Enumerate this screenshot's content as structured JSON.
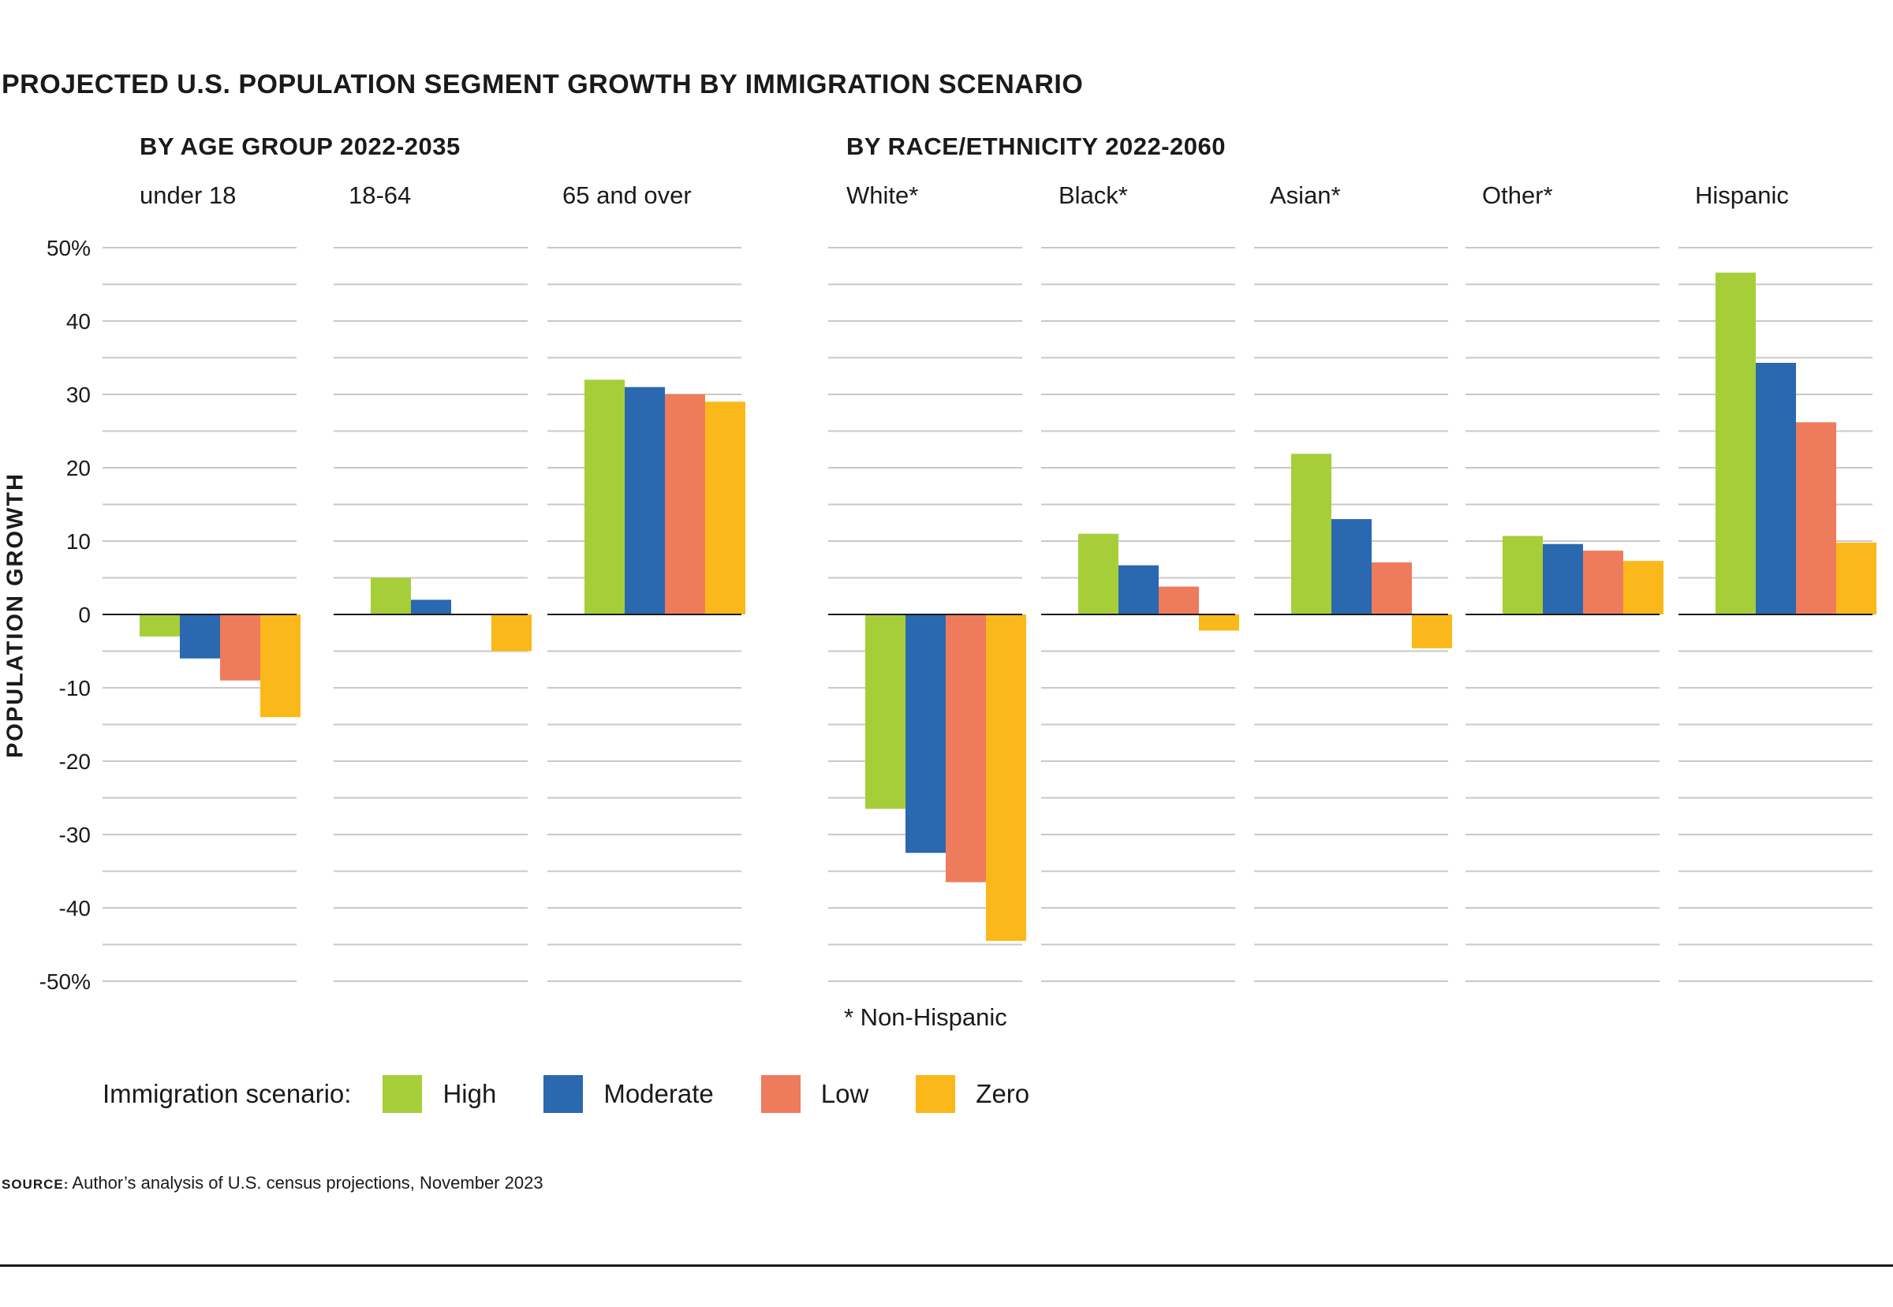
{
  "chart_data": {
    "type": "bar",
    "title": "PROJECTED U.S. POPULATION SEGMENT GROWTH BY IMMIGRATION SCENARIO",
    "ylabel": "POPULATION GROWTH",
    "ylim": [
      -50,
      50
    ],
    "y_ticks": [
      "50%",
      "40",
      "30",
      "20",
      "10",
      "0",
      "-10",
      "-20",
      "-30",
      "-40",
      "-50%"
    ],
    "sections": [
      {
        "title": "BY AGE GROUP 2022-2035"
      },
      {
        "title": "BY RACE/ETHNICITY 2022-2060"
      }
    ],
    "series_names": [
      "High",
      "Moderate",
      "Low",
      "Zero"
    ],
    "colors": {
      "High": "#a6ce39",
      "Moderate": "#2a68b0",
      "Low": "#ef7b5d",
      "Zero": "#fbb81a"
    },
    "panels": [
      {
        "label": "under 18",
        "values": [
          -3,
          -6,
          -9,
          -14
        ]
      },
      {
        "label": "18-64",
        "values": [
          5,
          2,
          0,
          -5
        ]
      },
      {
        "label": "65 and over",
        "values": [
          32,
          31,
          30,
          29
        ]
      },
      {
        "label": "White*",
        "values": [
          -26.5,
          -32.5,
          -36.5,
          -44.5
        ]
      },
      {
        "label": "Black*",
        "values": [
          11,
          6.7,
          3.8,
          -2.2
        ]
      },
      {
        "label": "Asian*",
        "values": [
          21.9,
          13,
          7.1,
          -4.6
        ]
      },
      {
        "label": "Other*",
        "values": [
          10.7,
          9.6,
          8.7,
          7.3
        ]
      },
      {
        "label": "Hispanic",
        "values": [
          46.6,
          34.3,
          26.2,
          9.8
        ]
      }
    ],
    "footnote": "* Non-Hispanic",
    "legend_title": "Immigration scenario:"
  },
  "source": {
    "label": "Source:",
    "text": "Author’s analysis of U.S. census projections, November 2023"
  }
}
